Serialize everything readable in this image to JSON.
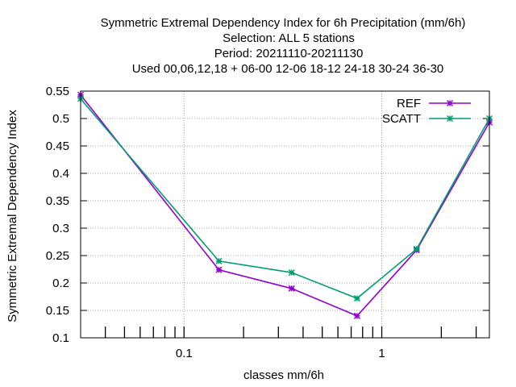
{
  "chart_data": {
    "type": "line",
    "title_lines": [
      "Symmetric Extremal Dependency Index  for 6h Precipitation (mm/6h)",
      "Selection: ALL      5 stations",
      "Period: 20211110-20211130",
      "Used  00,06,12,18 + 06-00 12-06 18-12 24-18 30-24 36-30"
    ],
    "xlabel": "classes mm/6h",
    "ylabel": "Symmetric Extremal Dependency Index",
    "x_scale": "log",
    "xlim": [
      0.03,
      3.5
    ],
    "ylim": [
      0.1,
      0.55
    ],
    "x_tick_labels": [
      {
        "value": 0.1,
        "label": "0.1"
      },
      {
        "value": 1,
        "label": "1"
      }
    ],
    "y_tick_labels": [
      {
        "value": 0.1,
        "label": "0.1"
      },
      {
        "value": 0.15,
        "label": "0.15"
      },
      {
        "value": 0.2,
        "label": "0.2"
      },
      {
        "value": 0.25,
        "label": "0.25"
      },
      {
        "value": 0.3,
        "label": "0.3"
      },
      {
        "value": 0.35,
        "label": "0.35"
      },
      {
        "value": 0.4,
        "label": "0.4"
      },
      {
        "value": 0.45,
        "label": "0.45"
      },
      {
        "value": 0.5,
        "label": "0.5"
      },
      {
        "value": 0.55,
        "label": "0.55"
      }
    ],
    "grid": true,
    "legend_position": "top-right",
    "series": [
      {
        "name": "REF",
        "color": "#9400d3",
        "x": [
          0.03,
          0.15,
          0.35,
          0.75,
          1.5,
          3.5
        ],
        "y": [
          0.543,
          0.224,
          0.19,
          0.14,
          0.26,
          0.493
        ]
      },
      {
        "name": "SCATT",
        "color": "#009e73",
        "x": [
          0.03,
          0.15,
          0.35,
          0.75,
          1.5,
          3.5
        ],
        "y": [
          0.536,
          0.24,
          0.219,
          0.172,
          0.262,
          0.5
        ]
      }
    ]
  }
}
